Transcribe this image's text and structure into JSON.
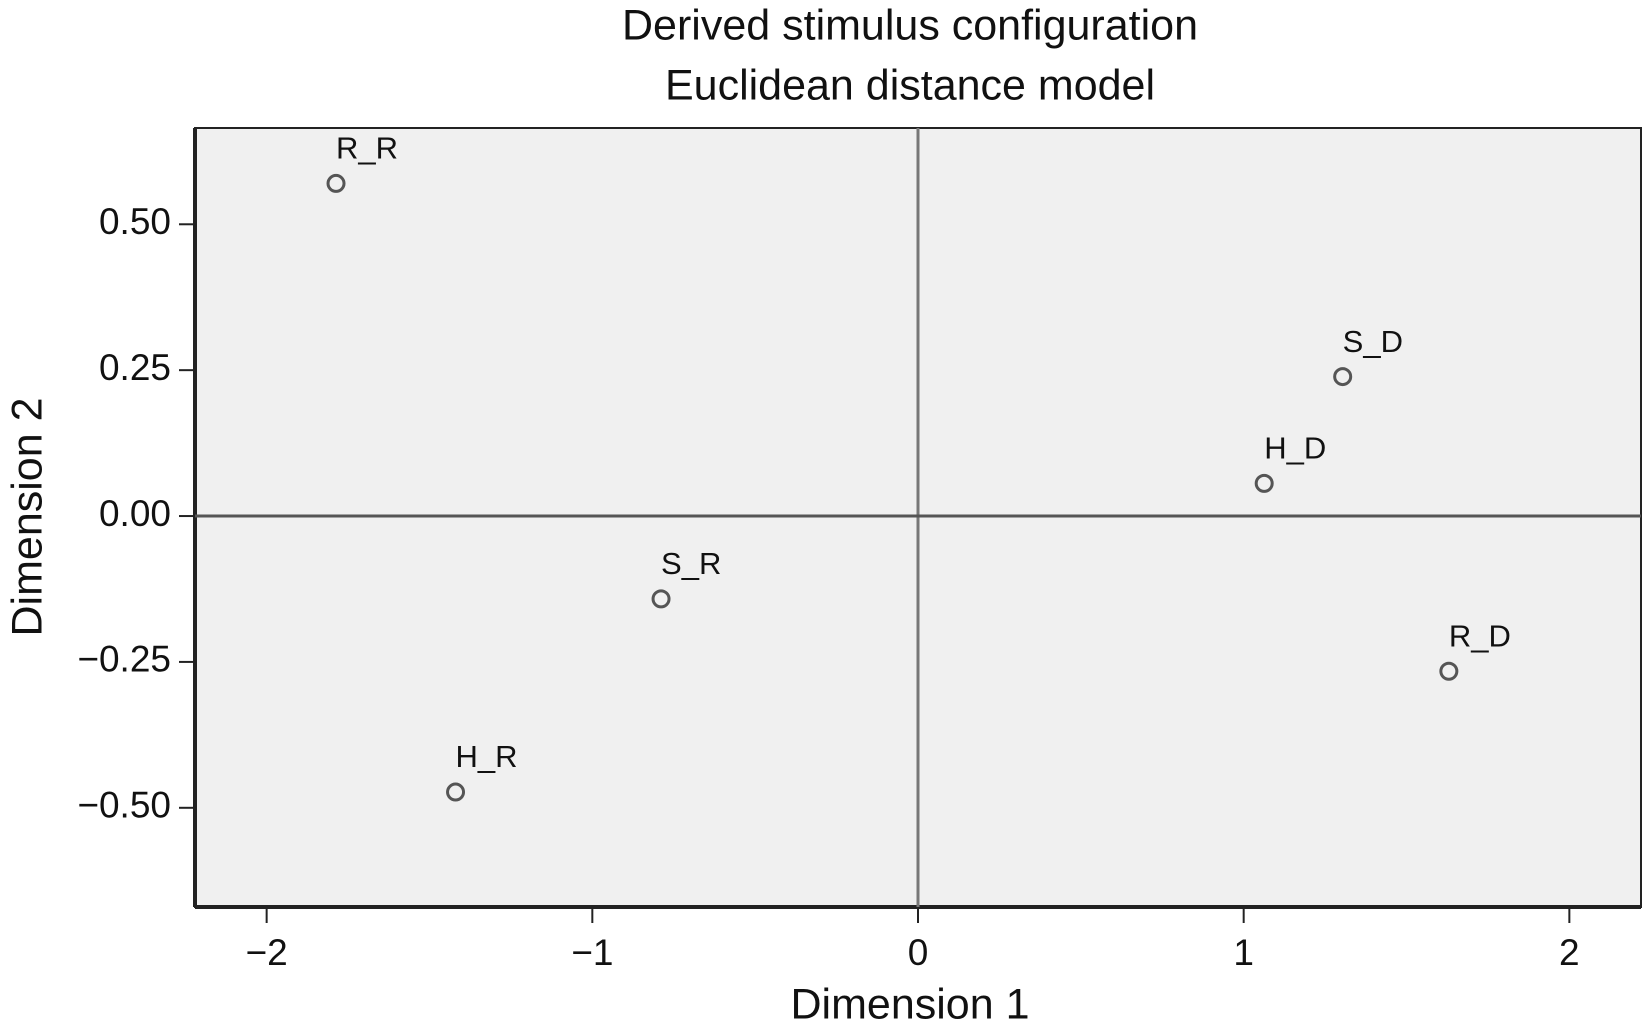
{
  "chart_data": {
    "type": "scatter",
    "title": "Derived stimulus configuration",
    "subtitle": "Euclidean distance model",
    "x_label": "Dimension 1",
    "y_label": "Dimension 2",
    "labels": [
      "R_R",
      "S_D",
      "H_D",
      "S_R",
      "R_D",
      "H_R"
    ],
    "x": [
      -1.787,
      1.304,
      1.063,
      -0.789,
      1.63,
      -1.42
    ],
    "values": [
      0.57,
      0.239,
      0.056,
      -0.142,
      -0.266,
      -0.473
    ],
    "color": "#555555",
    "xlim": [
      -2.22,
      2.22
    ],
    "ylim": [
      -0.67,
      0.665
    ],
    "xticks": [
      {
        "value": -2,
        "label": "−2"
      },
      {
        "value": -1,
        "label": "−1"
      },
      0,
      1,
      2
    ],
    "yticks": [
      {
        "value": 0.5,
        "label": "0.50"
      },
      0.25,
      {
        "value": 0,
        "label": "0.00"
      },
      {
        "value": -0.25,
        "label": "−0.25"
      },
      {
        "value": -0.5,
        "label": "−0.50"
      }
    ],
    "grid": false
  }
}
